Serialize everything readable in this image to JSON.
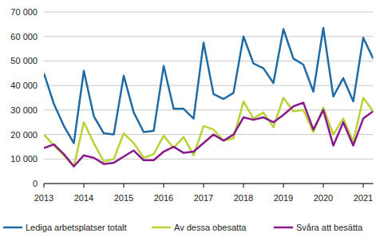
{
  "chart_data": {
    "type": "line",
    "x": [
      2013,
      2013.25,
      2013.5,
      2013.75,
      2014,
      2014.25,
      2014.5,
      2014.75,
      2015,
      2015.25,
      2015.5,
      2015.75,
      2016,
      2016.25,
      2016.5,
      2016.75,
      2017,
      2017.25,
      2017.5,
      2017.75,
      2018,
      2018.25,
      2018.5,
      2018.75,
      2019,
      2019.25,
      2019.5,
      2019.75,
      2020,
      2020.25,
      2020.5,
      2020.75,
      2021,
      2021.25
    ],
    "series": [
      {
        "name": "Lediga arbetsplatser totalt",
        "color": "#1f6ba5",
        "values": [
          45000,
          32500,
          23500,
          16500,
          46000,
          27500,
          20500,
          20000,
          44000,
          29000,
          21000,
          21500,
          48000,
          30500,
          30500,
          26500,
          57500,
          36500,
          34500,
          37000,
          60000,
          49000,
          47000,
          41000,
          63000,
          51000,
          48500,
          37500,
          63500,
          35500,
          43000,
          33500,
          59500,
          51000
        ]
      },
      {
        "name": "Av dessa obesatta",
        "color": "#b8d335",
        "values": [
          20000,
          15500,
          11500,
          7000,
          25000,
          16500,
          9000,
          10000,
          20500,
          16500,
          10500,
          12000,
          19500,
          14500,
          19000,
          11500,
          23500,
          22000,
          17500,
          18500,
          33500,
          26500,
          29000,
          23000,
          35000,
          29500,
          30000,
          21000,
          31000,
          20000,
          26500,
          17000,
          35000,
          29500
        ]
      },
      {
        "name": "Svåra att besätta",
        "color": "#8a1a8c",
        "values": [
          14500,
          16000,
          12000,
          7000,
          11500,
          10500,
          8000,
          8500,
          11000,
          13500,
          9500,
          9500,
          13000,
          15000,
          12500,
          13000,
          16500,
          20000,
          17500,
          20000,
          27000,
          26000,
          27000,
          25000,
          28000,
          31500,
          33000,
          22000,
          30000,
          15500,
          25000,
          15500,
          26500,
          29500
        ]
      }
    ],
    "xlim": [
      2013,
      2021.25
    ],
    "xticks": [
      2013,
      2014,
      2015,
      2016,
      2017,
      2018,
      2019,
      2020,
      2021
    ],
    "ylim": [
      0,
      70000
    ],
    "yticks": [
      0,
      {
        "value": 10000,
        "label": "10 000"
      },
      {
        "value": 20000,
        "label": "20 000"
      },
      {
        "value": 30000,
        "label": "30 000"
      },
      {
        "value": 40000,
        "label": "40 000"
      },
      {
        "value": 50000,
        "label": "50 000"
      },
      {
        "value": 60000,
        "label": "60 000"
      },
      {
        "value": 70000,
        "label": "70 000"
      }
    ],
    "grid": true,
    "legend": "bottom"
  }
}
